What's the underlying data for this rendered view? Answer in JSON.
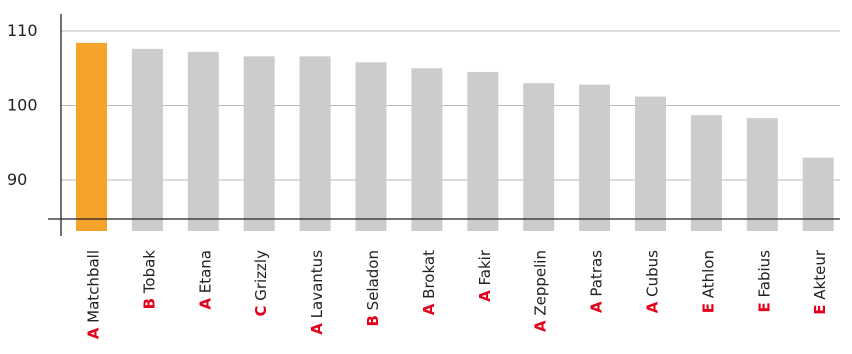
{
  "chart_data": {
    "type": "bar",
    "title": "",
    "xlabel": "",
    "ylabel": "",
    "ylim": [
      82.5,
      112
    ],
    "yticks": [
      90,
      100,
      110
    ],
    "grid": true,
    "highlight_color": "#f5a32a",
    "bar_color": "#cccccb",
    "class_color": "#e2001a",
    "categories": [
      {
        "class": "A",
        "name": "Matchball"
      },
      {
        "class": "B",
        "name": "Tobak"
      },
      {
        "class": "A",
        "name": "Etana"
      },
      {
        "class": "C",
        "name": "Grizzly"
      },
      {
        "class": "A",
        "name": "Lavantus"
      },
      {
        "class": "B",
        "name": "Seladon"
      },
      {
        "class": "A",
        "name": "Brokat"
      },
      {
        "class": "A",
        "name": "Fakir"
      },
      {
        "class": "A",
        "name": "Zeppelin"
      },
      {
        "class": "A",
        "name": "Patras"
      },
      {
        "class": "A",
        "name": "Cubus"
      },
      {
        "class": "E",
        "name": "Athlon"
      },
      {
        "class": "E",
        "name": "Fabius"
      },
      {
        "class": "E",
        "name": "Akteur"
      }
    ],
    "values": [
      108.4,
      107.6,
      107.2,
      106.6,
      106.6,
      105.8,
      105.0,
      104.5,
      103.0,
      102.8,
      101.2,
      98.7,
      98.3,
      93.0
    ],
    "highlight_index": 0
  }
}
